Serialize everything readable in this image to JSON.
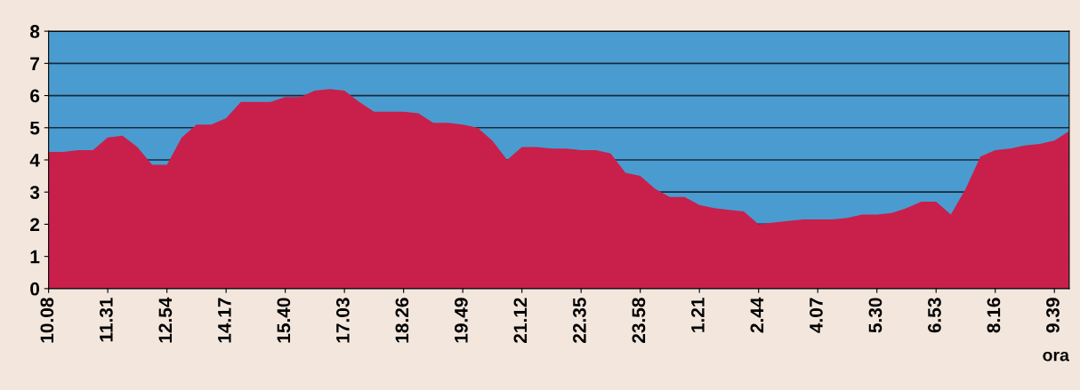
{
  "chart_data": {
    "type": "area",
    "xlabel": "ora",
    "categories": [
      "10.08",
      null,
      null,
      null,
      "11.31",
      null,
      null,
      null,
      "12.54",
      null,
      null,
      null,
      "14.17",
      null,
      null,
      null,
      "15.40",
      null,
      null,
      null,
      "17.03",
      null,
      null,
      null,
      "18.26",
      null,
      null,
      null,
      "19.49",
      null,
      null,
      null,
      "21.12",
      null,
      null,
      null,
      "22.35",
      null,
      null,
      null,
      "23.58",
      null,
      null,
      null,
      "1.21",
      null,
      null,
      null,
      "2.44",
      null,
      null,
      null,
      "4.07",
      null,
      null,
      null,
      "5.30",
      null,
      null,
      null,
      "6.53",
      null,
      null,
      null,
      "8.16",
      null,
      null,
      null,
      "9.39",
      null
    ],
    "series": [
      {
        "color": "#c8204a",
        "values": [
          4.25,
          4.25,
          4.3,
          4.3,
          4.7,
          4.75,
          4.4,
          3.85,
          3.85,
          4.7,
          5.1,
          5.1,
          5.3,
          5.8,
          5.8,
          5.8,
          5.95,
          5.95,
          6.15,
          6.2,
          6.15,
          5.8,
          5.5,
          5.5,
          5.5,
          5.45,
          5.15,
          5.15,
          5.1,
          5.0,
          4.6,
          4.0,
          4.4,
          4.4,
          4.35,
          4.35,
          4.3,
          4.3,
          4.2,
          3.6,
          3.5,
          3.1,
          2.85,
          2.85,
          2.6,
          2.5,
          2.45,
          2.4,
          2.0,
          2.05,
          2.1,
          2.15,
          2.15,
          2.15,
          2.2,
          2.3,
          2.3,
          2.35,
          2.5,
          2.7,
          2.7,
          2.3,
          3.1,
          4.1,
          4.3,
          4.35,
          4.45,
          4.5,
          4.6,
          4.9
        ]
      }
    ],
    "ylim": [
      0,
      8
    ],
    "yticks": [
      0,
      1,
      2,
      3,
      4,
      5,
      6,
      7,
      8
    ],
    "grid": "y"
  }
}
